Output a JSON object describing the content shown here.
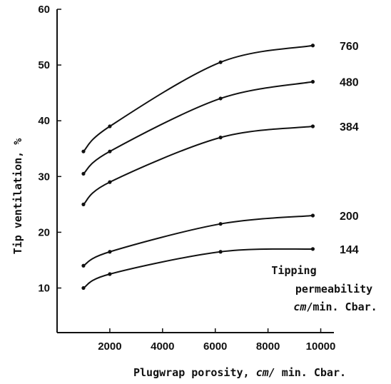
{
  "chart_data": {
    "type": "line",
    "xlabel_text": "Plugwrap porosity,",
    "xlabel_unit": "cm/",
    "xlabel_rest": " min. Cbar.",
    "ylabel": "Tip ventilation,  %",
    "xlim": [
      0,
      10500
    ],
    "ylim": [
      2,
      60
    ],
    "x_ticks": [
      2000,
      4000,
      6000,
      8000,
      10000
    ],
    "y_ticks": [
      10,
      20,
      30,
      40,
      50,
      60
    ],
    "legend_title": [
      "Tipping",
      "permeability"
    ],
    "legend_unit": "cm",
    "legend_unit_rest": "/min. Cbar.",
    "series": [
      {
        "name": "760",
        "x": [
          1000,
          2000,
          6200,
          9700
        ],
        "values": [
          34.5,
          39,
          50.5,
          53.5
        ]
      },
      {
        "name": "480",
        "x": [
          1000,
          2000,
          6200,
          9700
        ],
        "values": [
          30.5,
          34.5,
          44,
          47
        ]
      },
      {
        "name": "384",
        "x": [
          1000,
          2000,
          6200,
          9700
        ],
        "values": [
          25,
          29,
          37,
          39
        ]
      },
      {
        "name": "200",
        "x": [
          1000,
          2000,
          6200,
          9700
        ],
        "values": [
          14,
          16.5,
          21.5,
          23
        ]
      },
      {
        "name": "144",
        "x": [
          1000,
          2000,
          6200,
          9700
        ],
        "values": [
          10,
          12.5,
          16.5,
          17
        ]
      }
    ]
  }
}
